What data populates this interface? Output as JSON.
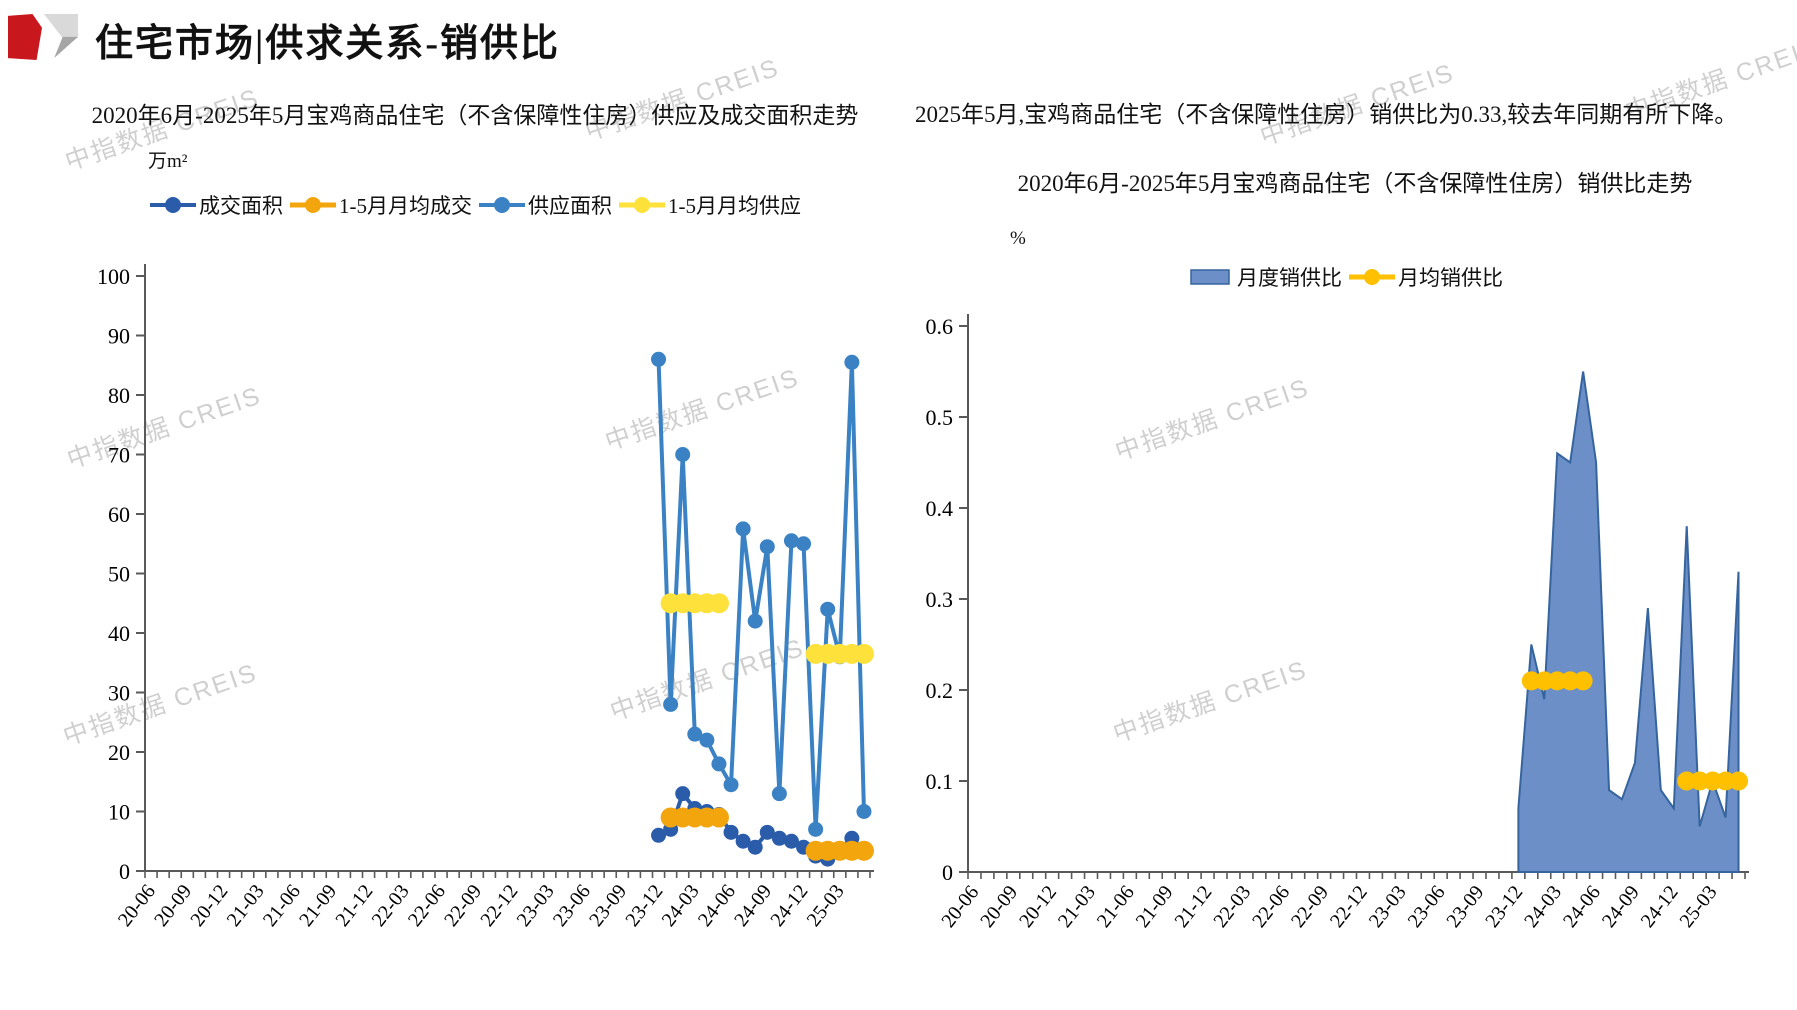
{
  "header": {
    "main_title": "住宅市场|供求关系-销供比"
  },
  "watermark": {
    "text": "中指数据 CREIS"
  },
  "left_panel": {
    "title": "2020年6月-2025年5月宝鸡商品住宅（不含保障性住房）供应及成交面积走势",
    "unit": "万m²"
  },
  "right_panel": {
    "note": "2025年5月,宝鸡商品住宅（不含保障性住房）销供比为0.33,较去年同期有所下降。",
    "title": "2020年6月-2025年5月宝鸡商品住宅（不含保障性住房）销供比走势",
    "unit": "%"
  },
  "chart_data": [
    {
      "type": "line",
      "title": "2020年6月-2025年5月宝鸡商品住宅（不含保障性住房）供应及成交面积走势",
      "ylabel": "万m²",
      "ylim": [
        0,
        100
      ],
      "yticks": [
        0,
        10,
        20,
        30,
        40,
        50,
        60,
        70,
        80,
        90,
        100
      ],
      "grid": false,
      "legend_position": "top",
      "x_axis": {
        "start": "20-06",
        "end": "25-05",
        "months_total": 60,
        "tick_label_every": 3,
        "labels": [
          "20-06",
          "20-09",
          "20-12",
          "21-03",
          "21-06",
          "21-09",
          "21-12",
          "22-03",
          "22-06",
          "22-09",
          "22-12",
          "23-03",
          "23-06",
          "23-09",
          "23-12",
          "24-03",
          "24-06",
          "24-09",
          "24-12",
          "25-03"
        ]
      },
      "series": [
        {
          "name": "成交面积",
          "type": "line",
          "color": "#2A5CAA",
          "start": "23-12",
          "values": [
            6,
            7,
            13,
            10.5,
            10,
            9.5,
            6.5,
            5,
            4,
            6.5,
            5.5,
            5,
            4,
            2.5,
            2,
            3.5,
            5.5,
            3.3
          ]
        },
        {
          "name": "1-5月月均成交",
          "type": "avg-line",
          "color": "#F2A50C",
          "segments": [
            {
              "start": "24-01",
              "values": [
                9,
                9,
                9,
                9,
                9
              ]
            },
            {
              "start": "25-01",
              "values": [
                3.4,
                3.4,
                3.4,
                3.4,
                3.4
              ]
            }
          ]
        },
        {
          "name": "供应面积",
          "type": "line",
          "color": "#3B82C4",
          "start": "23-12",
          "values": [
            86,
            28,
            70,
            23,
            22,
            18,
            14.5,
            57.5,
            42,
            54.5,
            13,
            55.5,
            55,
            7,
            44,
            36,
            85.5,
            10
          ]
        },
        {
          "name": "1-5月月均供应",
          "type": "avg-line",
          "color": "#FFE13C",
          "segments": [
            {
              "start": "24-01",
              "values": [
                45,
                45,
                45,
                45,
                45
              ]
            },
            {
              "start": "25-01",
              "values": [
                36.5,
                36.5,
                36.5,
                36.5,
                36.5
              ]
            }
          ]
        }
      ]
    },
    {
      "type": "area",
      "title": "2020年6月-2025年5月宝鸡商品住宅（不含保障性住房）销供比走势",
      "ylabel": "%",
      "ylim": [
        0,
        0.6
      ],
      "yticks": [
        0,
        0.1,
        0.2,
        0.3,
        0.4,
        0.5,
        0.6
      ],
      "grid": false,
      "legend_position": "top",
      "x_axis": {
        "start": "20-06",
        "end": "25-05",
        "months_total": 60,
        "tick_label_every": 3,
        "labels": [
          "20-06",
          "20-09",
          "20-12",
          "21-03",
          "21-06",
          "21-09",
          "21-12",
          "22-03",
          "22-06",
          "22-09",
          "22-12",
          "23-03",
          "23-06",
          "23-09",
          "23-12",
          "24-03",
          "24-06",
          "24-09",
          "24-12",
          "25-03"
        ]
      },
      "series": [
        {
          "name": "月度销供比",
          "type": "area",
          "fill": "#6D8FC7",
          "stroke": "#35649F",
          "start": "23-12",
          "values": [
            0.07,
            0.25,
            0.19,
            0.46,
            0.45,
            0.55,
            0.45,
            0.09,
            0.08,
            0.12,
            0.29,
            0.09,
            0.07,
            0.38,
            0.05,
            0.1,
            0.06,
            0.33
          ]
        },
        {
          "name": "月均销供比",
          "type": "avg-line",
          "color": "#FFC000",
          "segments": [
            {
              "start": "24-01",
              "values": [
                0.21,
                0.21,
                0.21,
                0.21,
                0.21
              ]
            },
            {
              "start": "25-01",
              "values": [
                0.1,
                0.1,
                0.1,
                0.1,
                0.1
              ]
            }
          ]
        }
      ]
    }
  ]
}
